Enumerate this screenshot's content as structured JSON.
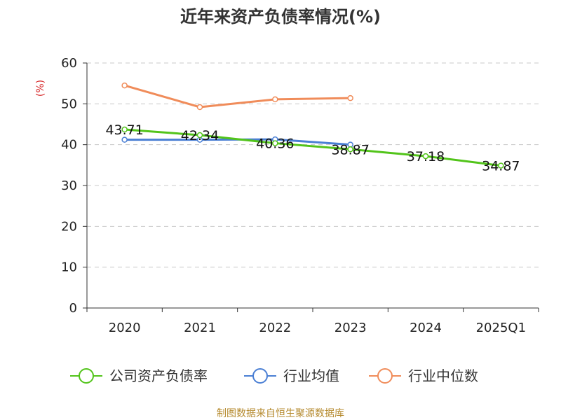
{
  "chart_data": {
    "type": "line",
    "title": "近年来资产负债率情况(%)",
    "ylabel": "(%)",
    "xlabel": "",
    "ylim": [
      0,
      60
    ],
    "yticks": [
      0,
      10,
      20,
      30,
      40,
      50,
      60
    ],
    "categories": [
      "2020",
      "2021",
      "2022",
      "2023",
      "2024",
      "2025Q1"
    ],
    "grid": true,
    "legend_position": "bottom",
    "series": [
      {
        "name": "公司资产负债率",
        "color": "#52c41a",
        "values": [
          43.71,
          42.34,
          40.36,
          38.87,
          37.18,
          34.87
        ],
        "labels": [
          "43.71",
          "42.34",
          "40.36",
          "38.87",
          "37.18",
          "34.87"
        ],
        "show_labels": true
      },
      {
        "name": "行业均值",
        "color": "#4a7fd4",
        "values": [
          41.2,
          41.2,
          41.3,
          40.0,
          null,
          null
        ],
        "show_labels": false
      },
      {
        "name": "行业中位数",
        "color": "#f08c5a",
        "values": [
          54.5,
          49.2,
          51.1,
          51.4,
          null,
          null
        ],
        "show_labels": false
      }
    ]
  },
  "source": "制图数据来自恒生聚源数据库",
  "unit_color": "#d62728"
}
